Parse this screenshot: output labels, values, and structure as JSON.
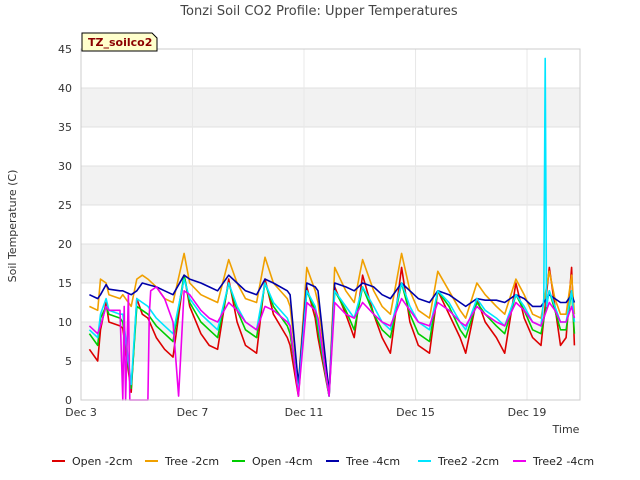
{
  "chart_data": {
    "type": "line",
    "title": "Tonzi Soil CO2 Profile: Upper Temperatures",
    "xlabel": "Time",
    "ylabel": "Soil Temperature (C)",
    "badge": "TZ_soilco2",
    "x_unit": "day of December",
    "xlim": [
      3,
      20.9
    ],
    "ylim": [
      0,
      45
    ],
    "yticks": [
      0,
      5,
      10,
      15,
      20,
      25,
      30,
      35,
      40,
      45
    ],
    "xticks": [
      {
        "value": 3,
        "label": "Dec 3"
      },
      {
        "value": 7,
        "label": "Dec 7"
      },
      {
        "value": 11,
        "label": "Dec 11"
      },
      {
        "value": 15,
        "label": "Dec 15"
      },
      {
        "value": 19,
        "label": "Dec 19"
      }
    ],
    "grid": true,
    "legend_position": "bottom",
    "series": [
      {
        "name": "Open -2cm",
        "color": "#dd0000",
        "x": [
          3.3,
          3.6,
          3.7,
          3.9,
          4.0,
          4.4,
          4.5,
          4.8,
          5.0,
          5.2,
          5.4,
          5.7,
          6.0,
          6.3,
          6.7,
          6.9,
          7.3,
          7.6,
          7.9,
          8.3,
          8.6,
          8.9,
          9.3,
          9.6,
          9.9,
          10.4,
          10.5,
          10.8,
          11.1,
          11.4,
          11.5,
          11.9,
          12.1,
          12.5,
          12.8,
          13.1,
          13.5,
          13.8,
          14.1,
          14.5,
          14.8,
          15.1,
          15.5,
          15.8,
          16.2,
          16.6,
          16.8,
          17.2,
          17.5,
          17.9,
          18.2,
          18.6,
          18.9,
          19.2,
          19.5,
          19.8,
          20.0,
          20.2,
          20.4,
          20.6,
          20.7
        ],
        "y": [
          6.5,
          5.0,
          9.0,
          12.5,
          10.0,
          9.5,
          9.2,
          1.0,
          13.0,
          11.0,
          10.5,
          8.0,
          6.5,
          5.5,
          16.0,
          12.0,
          8.5,
          7.0,
          6.5,
          15.5,
          10.0,
          7.0,
          6.0,
          15.5,
          11.0,
          8.0,
          7.0,
          0.5,
          14.5,
          10.5,
          8.0,
          0.5,
          14.5,
          11.0,
          8.0,
          16.0,
          11.0,
          8.0,
          6.0,
          17.0,
          10.0,
          7.0,
          6.0,
          14.0,
          11.0,
          8.0,
          6.0,
          13.0,
          10.0,
          8.0,
          6.0,
          15.0,
          10.5,
          8.0,
          7.0,
          17.0,
          12.0,
          7.0,
          8.0,
          17.0,
          7.0
        ]
      },
      {
        "name": "Tree -2cm",
        "color": "#f0a000",
        "x": [
          3.3,
          3.6,
          3.7,
          3.9,
          4.0,
          4.4,
          4.5,
          4.8,
          5.0,
          5.2,
          5.4,
          5.7,
          6.0,
          6.3,
          6.7,
          6.9,
          7.3,
          7.6,
          7.9,
          8.3,
          8.6,
          8.9,
          9.3,
          9.6,
          9.9,
          10.4,
          10.5,
          10.8,
          11.1,
          11.4,
          11.5,
          11.9,
          12.1,
          12.5,
          12.8,
          13.1,
          13.5,
          13.8,
          14.1,
          14.5,
          14.8,
          15.1,
          15.5,
          15.8,
          16.2,
          16.6,
          16.8,
          17.2,
          17.5,
          17.9,
          18.2,
          18.6,
          18.9,
          19.2,
          19.5,
          19.8,
          20.0,
          20.2,
          20.4,
          20.6,
          20.7
        ],
        "y": [
          12.0,
          11.5,
          15.5,
          15.0,
          13.5,
          13.0,
          13.5,
          12.0,
          15.5,
          16.0,
          15.5,
          14.5,
          13.0,
          12.5,
          18.8,
          15.0,
          13.5,
          13.0,
          12.5,
          18.0,
          15.0,
          13.0,
          12.5,
          18.3,
          15.0,
          13.0,
          12.0,
          2.0,
          17.0,
          14.0,
          12.5,
          1.0,
          17.0,
          14.0,
          12.5,
          18.0,
          14.0,
          12.0,
          11.0,
          18.8,
          14.0,
          11.5,
          10.5,
          16.5,
          14.0,
          11.5,
          10.5,
          15.0,
          13.5,
          12.0,
          11.0,
          15.5,
          13.5,
          11.0,
          10.5,
          16.5,
          13.0,
          11.0,
          11.0,
          16.0,
          11.0
        ]
      },
      {
        "name": "Open -4cm",
        "color": "#00cc00",
        "x": [
          3.3,
          3.6,
          3.7,
          3.9,
          4.0,
          4.4,
          4.5,
          4.8,
          5.0,
          5.2,
          5.4,
          5.7,
          6.0,
          6.3,
          6.7,
          6.9,
          7.3,
          7.6,
          7.9,
          8.3,
          8.6,
          8.9,
          9.3,
          9.6,
          9.9,
          10.4,
          10.5,
          10.8,
          11.1,
          11.4,
          11.5,
          11.9,
          12.1,
          12.5,
          12.8,
          13.1,
          13.5,
          13.8,
          14.1,
          14.5,
          14.8,
          15.1,
          15.5,
          15.8,
          16.2,
          16.6,
          16.8,
          17.2,
          17.5,
          17.9,
          18.2,
          18.6,
          18.9,
          19.2,
          19.5,
          19.8,
          20.0,
          20.2,
          20.4,
          20.6,
          20.7
        ],
        "y": [
          8.5,
          7.0,
          10.5,
          12.0,
          11.0,
          10.5,
          10.0,
          1.5,
          12.0,
          11.5,
          11.0,
          9.5,
          8.5,
          7.5,
          16.0,
          12.5,
          10.0,
          9.0,
          8.0,
          15.0,
          11.5,
          9.0,
          8.0,
          15.0,
          12.0,
          9.5,
          8.5,
          1.0,
          14.0,
          11.5,
          9.0,
          0.5,
          14.0,
          11.5,
          9.0,
          14.5,
          11.0,
          9.0,
          8.0,
          15.0,
          11.0,
          8.5,
          7.5,
          14.0,
          12.0,
          9.0,
          8.0,
          12.5,
          11.0,
          9.5,
          8.5,
          13.5,
          11.5,
          9.0,
          8.5,
          14.0,
          11.5,
          9.0,
          9.0,
          14.0,
          8.5
        ]
      },
      {
        "name": "Tree -4cm",
        "color": "#0000aa",
        "x": [
          3.3,
          3.6,
          3.7,
          3.9,
          4.0,
          4.4,
          4.5,
          4.8,
          5.0,
          5.2,
          5.4,
          5.7,
          6.0,
          6.3,
          6.7,
          6.9,
          7.3,
          7.6,
          7.9,
          8.3,
          8.6,
          8.9,
          9.3,
          9.6,
          9.9,
          10.4,
          10.5,
          10.8,
          11.1,
          11.4,
          11.5,
          11.9,
          12.1,
          12.5,
          12.8,
          13.1,
          13.5,
          13.8,
          14.1,
          14.5,
          14.8,
          15.1,
          15.5,
          15.8,
          16.2,
          16.6,
          16.8,
          17.2,
          17.5,
          17.9,
          18.2,
          18.6,
          18.9,
          19.2,
          19.5,
          19.8,
          20.0,
          20.2,
          20.4,
          20.6,
          20.7
        ],
        "y": [
          13.5,
          13.0,
          13.5,
          14.8,
          14.2,
          14.0,
          14.0,
          13.5,
          14.0,
          15.0,
          14.8,
          14.5,
          14.0,
          13.5,
          16.0,
          15.5,
          15.0,
          14.5,
          14.0,
          16.0,
          15.0,
          14.0,
          13.5,
          15.5,
          15.0,
          14.0,
          13.5,
          2.0,
          15.0,
          14.5,
          14.0,
          1.0,
          15.0,
          14.5,
          14.0,
          15.0,
          14.5,
          13.5,
          13.0,
          15.0,
          14.0,
          13.0,
          12.5,
          14.0,
          13.5,
          12.5,
          12.0,
          13.0,
          12.8,
          12.8,
          12.5,
          13.5,
          13.0,
          12.0,
          12.0,
          13.5,
          13.0,
          12.5,
          12.5,
          13.5,
          12.5
        ]
      },
      {
        "name": "Tree2 -2cm",
        "color": "#00e5ff",
        "x": [
          3.3,
          3.6,
          3.7,
          3.9,
          4.0,
          4.4,
          4.5,
          4.8,
          5.0,
          5.2,
          5.4,
          5.7,
          6.0,
          6.3,
          6.7,
          6.9,
          7.3,
          7.6,
          7.9,
          8.3,
          8.6,
          8.9,
          9.3,
          9.6,
          9.9,
          10.4,
          10.5,
          10.8,
          11.1,
          11.4,
          11.5,
          11.9,
          12.1,
          12.5,
          12.8,
          13.1,
          13.5,
          13.8,
          14.1,
          14.5,
          14.8,
          15.1,
          15.5,
          15.8,
          16.2,
          16.6,
          16.8,
          17.2,
          17.5,
          17.9,
          18.2,
          18.6,
          18.9,
          19.2,
          19.5,
          19.6,
          19.65,
          19.7,
          19.8,
          20.0,
          20.2,
          20.4,
          20.6,
          20.7
        ],
        "y": [
          9.0,
          8.0,
          11.0,
          13.0,
          11.5,
          11.0,
          11.0,
          2.0,
          13.0,
          12.5,
          12.0,
          10.5,
          9.5,
          8.5,
          15.5,
          13.0,
          11.0,
          10.0,
          9.0,
          15.0,
          12.0,
          10.0,
          9.0,
          15.0,
          12.5,
          10.5,
          9.5,
          1.0,
          14.0,
          12.0,
          10.0,
          0.5,
          14.0,
          12.0,
          10.5,
          14.5,
          12.0,
          10.0,
          9.0,
          15.0,
          12.0,
          10.0,
          9.0,
          14.0,
          12.5,
          10.0,
          9.0,
          13.0,
          11.5,
          10.5,
          9.5,
          13.5,
          12.0,
          10.0,
          9.5,
          13.0,
          43.8,
          12.0,
          14.0,
          12.0,
          10.0,
          10.0,
          14.0,
          10.0
        ]
      },
      {
        "name": "Tree2 -4cm",
        "color": "#ee00ee",
        "x": [
          3.3,
          3.6,
          3.7,
          3.9,
          4.0,
          4.4,
          4.5,
          4.55,
          4.6,
          4.7,
          4.75,
          4.8,
          5.0,
          5.4,
          5.45,
          5.5,
          5.7,
          6.0,
          6.3,
          6.5,
          6.7,
          6.9,
          7.3,
          7.6,
          7.9,
          8.3,
          8.6,
          8.9,
          9.3,
          9.6,
          9.9,
          10.4,
          10.5,
          10.8,
          11.1,
          11.4,
          11.5,
          11.9,
          12.1,
          12.5,
          12.8,
          13.1,
          13.5,
          13.8,
          14.1,
          14.5,
          14.8,
          15.1,
          15.5,
          15.8,
          16.2,
          16.6,
          16.8,
          17.2,
          17.5,
          17.9,
          18.2,
          18.6,
          18.9,
          19.2,
          19.5,
          19.8,
          20.0,
          20.2,
          20.4,
          20.6,
          20.7
        ],
        "y": [
          9.5,
          8.5,
          9.5,
          12.0,
          11.5,
          11.5,
          0.0,
          12.0,
          0.0,
          13.5,
          0.0,
          0.0,
          0.0,
          0.0,
          11.0,
          14.0,
          14.5,
          13.0,
          10.0,
          0.5,
          14.0,
          13.5,
          11.5,
          10.5,
          10.0,
          12.5,
          11.5,
          10.0,
          9.0,
          12.0,
          11.5,
          10.0,
          9.5,
          0.5,
          12.5,
          11.5,
          10.5,
          0.5,
          12.5,
          11.0,
          10.5,
          12.5,
          11.0,
          10.0,
          9.5,
          13.0,
          11.5,
          10.0,
          9.5,
          12.5,
          11.5,
          10.0,
          9.5,
          12.0,
          11.0,
          10.0,
          9.5,
          12.5,
          11.5,
          10.0,
          9.5,
          12.5,
          11.5,
          10.0,
          10.0,
          12.0,
          10.5
        ]
      }
    ]
  }
}
